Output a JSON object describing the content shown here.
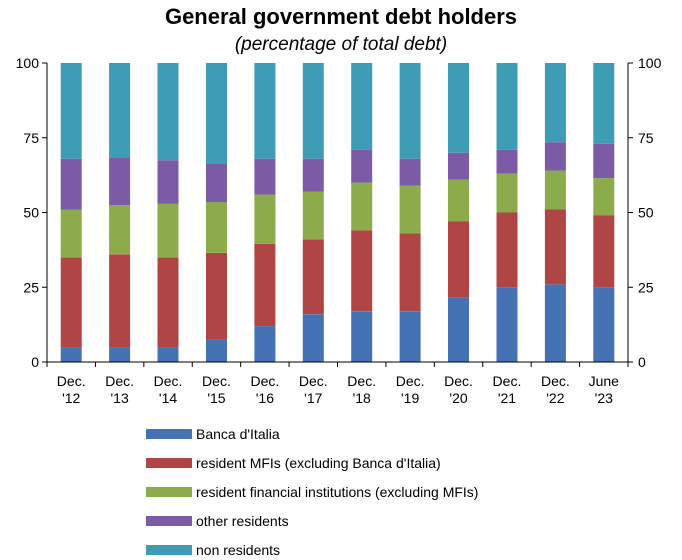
{
  "chart_data": {
    "type": "bar",
    "stacked": true,
    "title": "General government debt holders",
    "subtitle": "(percentage of total debt)",
    "categories": [
      [
        "Dec.",
        "'12"
      ],
      [
        "Dec.",
        "'13"
      ],
      [
        "Dec.",
        "'14"
      ],
      [
        "Dec.",
        "'15"
      ],
      [
        "Dec.",
        "'16"
      ],
      [
        "Dec.",
        "'17"
      ],
      [
        "Dec.",
        "'18"
      ],
      [
        "Dec.",
        "'19"
      ],
      [
        "Dec.",
        "'20"
      ],
      [
        "Dec.",
        "'21"
      ],
      [
        "Dec.",
        "'22"
      ],
      [
        "June",
        "'23"
      ]
    ],
    "ylim": [
      0,
      100
    ],
    "yticks": [
      0,
      25,
      50,
      75,
      100
    ],
    "secondary_axis": true,
    "grid": false,
    "legend_position": "bottom",
    "series": [
      {
        "name": "Banca d'Italia",
        "color": "#4472b2",
        "values": [
          5,
          5,
          5,
          7.5,
          12,
          16,
          17,
          17,
          21.5,
          25,
          26,
          25
        ]
      },
      {
        "name": "resident MFIs (excluding Banca d'Italia)",
        "color": "#b04545",
        "values": [
          30,
          31,
          30,
          29,
          27.5,
          25,
          27,
          26,
          25.5,
          25,
          25,
          24
        ]
      },
      {
        "name": "resident financial institutions (excluding MFIs)",
        "color": "#8cab4a",
        "values": [
          16,
          16.5,
          18,
          17,
          16.5,
          16,
          16,
          16,
          14,
          13,
          13,
          12.5
        ]
      },
      {
        "name": "other residents",
        "color": "#7b5ba6",
        "values": [
          17,
          16,
          14.5,
          13,
          12,
          11,
          11,
          9,
          9,
          8,
          9.5,
          11.5
        ]
      },
      {
        "name": "non residents",
        "color": "#3f9cb5",
        "values": [
          32,
          31.5,
          32.5,
          33.5,
          32,
          32,
          29,
          32,
          30,
          29,
          26.5,
          27
        ]
      }
    ]
  }
}
